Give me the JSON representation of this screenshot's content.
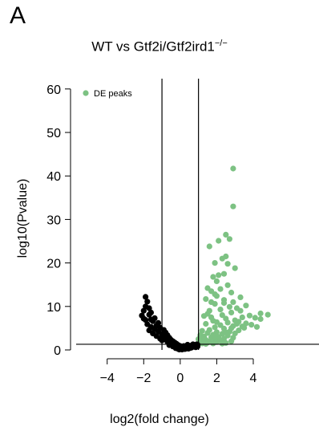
{
  "panel_label": "A",
  "title": {
    "main": "WT vs Gtf2i/Gtf2ird1",
    "superscript": "−/−"
  },
  "chart_data": {
    "type": "scatter",
    "title": "WT vs Gtf2i/Gtf2ird1−/−",
    "xlabel": "log2(fold change)",
    "ylabel": "log10(Pvalue)",
    "xlim": [
      -5.7,
      7.6
    ],
    "ylim": [
      0,
      62
    ],
    "x_ticks": [
      -4,
      -2,
      0,
      2,
      4
    ],
    "x_tick_labels": [
      "−4",
      "−2",
      "0",
      "2",
      "4"
    ],
    "y_ticks": [
      0,
      10,
      20,
      30,
      40,
      50,
      60
    ],
    "y_tick_labels": [
      "0",
      "10",
      "20",
      "30",
      "40",
      "50",
      "60"
    ],
    "vlines": [
      -1,
      1
    ],
    "hline": 1.3,
    "grid": false,
    "legend_position": "top-left",
    "colors": {
      "de": "#7dc283",
      "other": "#000000"
    },
    "series": [
      {
        "name": "DE peaks",
        "color": "#7dc283",
        "points": [
          [
            2.9,
            41.7
          ],
          [
            2.9,
            33
          ],
          [
            2.5,
            26.5
          ],
          [
            2.7,
            25.5
          ],
          [
            2.1,
            25.1
          ],
          [
            1.6,
            23.8
          ],
          [
            2.5,
            21.5
          ],
          [
            2.3,
            21
          ],
          [
            1.9,
            20
          ],
          [
            2.6,
            19.8
          ],
          [
            3.0,
            18.8
          ],
          [
            2.4,
            17.5
          ],
          [
            1.8,
            16.8
          ],
          [
            2.0,
            15.8
          ],
          [
            2.6,
            14.9
          ],
          [
            1.5,
            14.2
          ],
          [
            2.2,
            14.0
          ],
          [
            1.7,
            13.5
          ],
          [
            2.8,
            13.2
          ],
          [
            2.0,
            12.4
          ],
          [
            3.3,
            12.1
          ],
          [
            1.4,
            11.7
          ],
          [
            2.4,
            11.5
          ],
          [
            2.9,
            11.0
          ],
          [
            3.6,
            10.2
          ],
          [
            1.9,
            10.6
          ],
          [
            3.1,
            9.6
          ],
          [
            2.2,
            9.3
          ],
          [
            1.6,
            9.0
          ],
          [
            4.4,
            8.4
          ],
          [
            4.8,
            8.1
          ],
          [
            3.8,
            7.9
          ],
          [
            2.8,
            8.6
          ],
          [
            1.3,
            7.8
          ],
          [
            3.4,
            7.5
          ],
          [
            4.1,
            7.4
          ],
          [
            2.5,
            7.2
          ],
          [
            4.4,
            7.1
          ],
          [
            3.0,
            6.8
          ],
          [
            1.8,
            6.7
          ],
          [
            3.2,
            6.5
          ],
          [
            2.6,
            6.3
          ],
          [
            3.6,
            6.1
          ],
          [
            1.4,
            6.0
          ],
          [
            3.9,
            5.8
          ],
          [
            2.2,
            5.7
          ],
          [
            2.9,
            5.5
          ],
          [
            4.2,
            5.3
          ],
          [
            3.4,
            5.4
          ],
          [
            1.9,
            5.2
          ],
          [
            3.5,
            5.1
          ],
          [
            2.4,
            4.9
          ],
          [
            1.6,
            4.6
          ],
          [
            3.2,
            4.5
          ],
          [
            1.2,
            4.4
          ],
          [
            2.7,
            4.2
          ],
          [
            2.0,
            4.1
          ],
          [
            1.5,
            3.9
          ],
          [
            3.0,
            3.8
          ],
          [
            2.3,
            3.7
          ],
          [
            1.8,
            3.5
          ],
          [
            1.1,
            3.4
          ],
          [
            2.6,
            3.3
          ],
          [
            1.3,
            3.1
          ],
          [
            2.1,
            3.0
          ],
          [
            1.7,
            2.9
          ],
          [
            2.9,
            2.8
          ],
          [
            1.2,
            2.7
          ],
          [
            2.4,
            2.6
          ],
          [
            1.0,
            2.5
          ],
          [
            1.9,
            2.4
          ],
          [
            1.4,
            2.3
          ],
          [
            2.2,
            2.2
          ],
          [
            1.1,
            2.1
          ],
          [
            1.6,
            2.0
          ],
          [
            2.8,
            2.0
          ],
          [
            1.3,
            1.9
          ],
          [
            2.0,
            1.8
          ],
          [
            1.05,
            1.7
          ],
          [
            1.5,
            1.7
          ],
          [
            2.5,
            1.6
          ],
          [
            1.2,
            1.5
          ],
          [
            1.8,
            1.5
          ],
          [
            2.3,
            1.45
          ],
          [
            1.0,
            1.4
          ],
          [
            1.4,
            1.4
          ],
          [
            1.9,
            3.2
          ],
          [
            2.5,
            4.0
          ],
          [
            2.8,
            5.0
          ],
          [
            3.1,
            6.0
          ],
          [
            2.0,
            6.4
          ],
          [
            1.7,
            7.5
          ],
          [
            2.3,
            8.0
          ],
          [
            2.7,
            9.9
          ],
          [
            1.5,
            8.3
          ],
          [
            1.9,
            12.8
          ],
          [
            2.4,
            10.8
          ],
          [
            2.1,
            17.2
          ],
          [
            1.7,
            11.0
          ],
          [
            3.3,
            9.0
          ]
        ]
      },
      {
        "name": "",
        "color": "#000000",
        "points": [
          [
            -1.9,
            12.2
          ],
          [
            -1.8,
            11.1
          ],
          [
            -2.0,
            9.0
          ],
          [
            -1.6,
            8.6
          ],
          [
            -2.1,
            7.9
          ],
          [
            -1.7,
            8.1
          ],
          [
            -1.4,
            7.3
          ],
          [
            -1.9,
            6.9
          ],
          [
            -1.5,
            6.6
          ],
          [
            -1.2,
            6.2
          ],
          [
            -1.8,
            5.9
          ],
          [
            -1.3,
            5.6
          ],
          [
            -1.6,
            5.3
          ],
          [
            -1.1,
            5.1
          ],
          [
            -1.4,
            4.8
          ],
          [
            -0.9,
            4.6
          ],
          [
            -1.7,
            4.5
          ],
          [
            -1.2,
            4.2
          ],
          [
            -0.8,
            4.0
          ],
          [
            -1.5,
            3.8
          ],
          [
            -1.0,
            3.6
          ],
          [
            -0.7,
            3.4
          ],
          [
            -1.3,
            3.2
          ],
          [
            -0.9,
            3.0
          ],
          [
            -0.6,
            2.8
          ],
          [
            -1.1,
            2.6
          ],
          [
            -0.8,
            2.4
          ],
          [
            -0.5,
            2.3
          ],
          [
            -1.0,
            2.2
          ],
          [
            -0.4,
            2.0
          ],
          [
            -0.7,
            1.9
          ],
          [
            -0.3,
            1.7
          ],
          [
            -0.6,
            1.6
          ],
          [
            -0.2,
            1.4
          ],
          [
            -0.5,
            1.3
          ],
          [
            -0.1,
            1.1
          ],
          [
            -0.3,
            1.0
          ],
          [
            0.0,
            0.9
          ],
          [
            0.1,
            0.7
          ],
          [
            -0.2,
            0.6
          ],
          [
            0.2,
            0.5
          ],
          [
            0.0,
            0.3
          ],
          [
            0.3,
            0.4
          ],
          [
            -0.1,
            0.2
          ],
          [
            0.4,
            0.6
          ],
          [
            0.5,
            0.8
          ],
          [
            0.2,
            0.9
          ],
          [
            0.6,
            1.0
          ],
          [
            0.4,
            1.2
          ],
          [
            0.7,
            1.3
          ],
          [
            0.3,
            0.3
          ],
          [
            0.8,
            1.1
          ],
          [
            0.9,
            1.3
          ],
          [
            0.5,
            0.4
          ],
          [
            0.6,
            0.5
          ],
          [
            -0.4,
            0.8
          ],
          [
            -0.6,
            1.1
          ],
          [
            0.7,
            0.7
          ],
          [
            0.8,
            0.9
          ],
          [
            0.95,
            1.2
          ],
          [
            0.1,
            0.1
          ],
          [
            -0.05,
            0.1
          ],
          [
            0.25,
            0.2
          ],
          [
            -0.25,
            0.4
          ],
          [
            0.45,
            0.3
          ],
          [
            0.85,
            0.6
          ],
          [
            0.9,
            1.0
          ],
          [
            0.95,
            0.8
          ],
          [
            -1.9,
            10.0
          ],
          [
            -1.7,
            9.6
          ],
          [
            -2.0,
            7.2
          ],
          [
            -1.6,
            7.0
          ]
        ]
      }
    ]
  },
  "legend": {
    "label": "DE peaks"
  }
}
